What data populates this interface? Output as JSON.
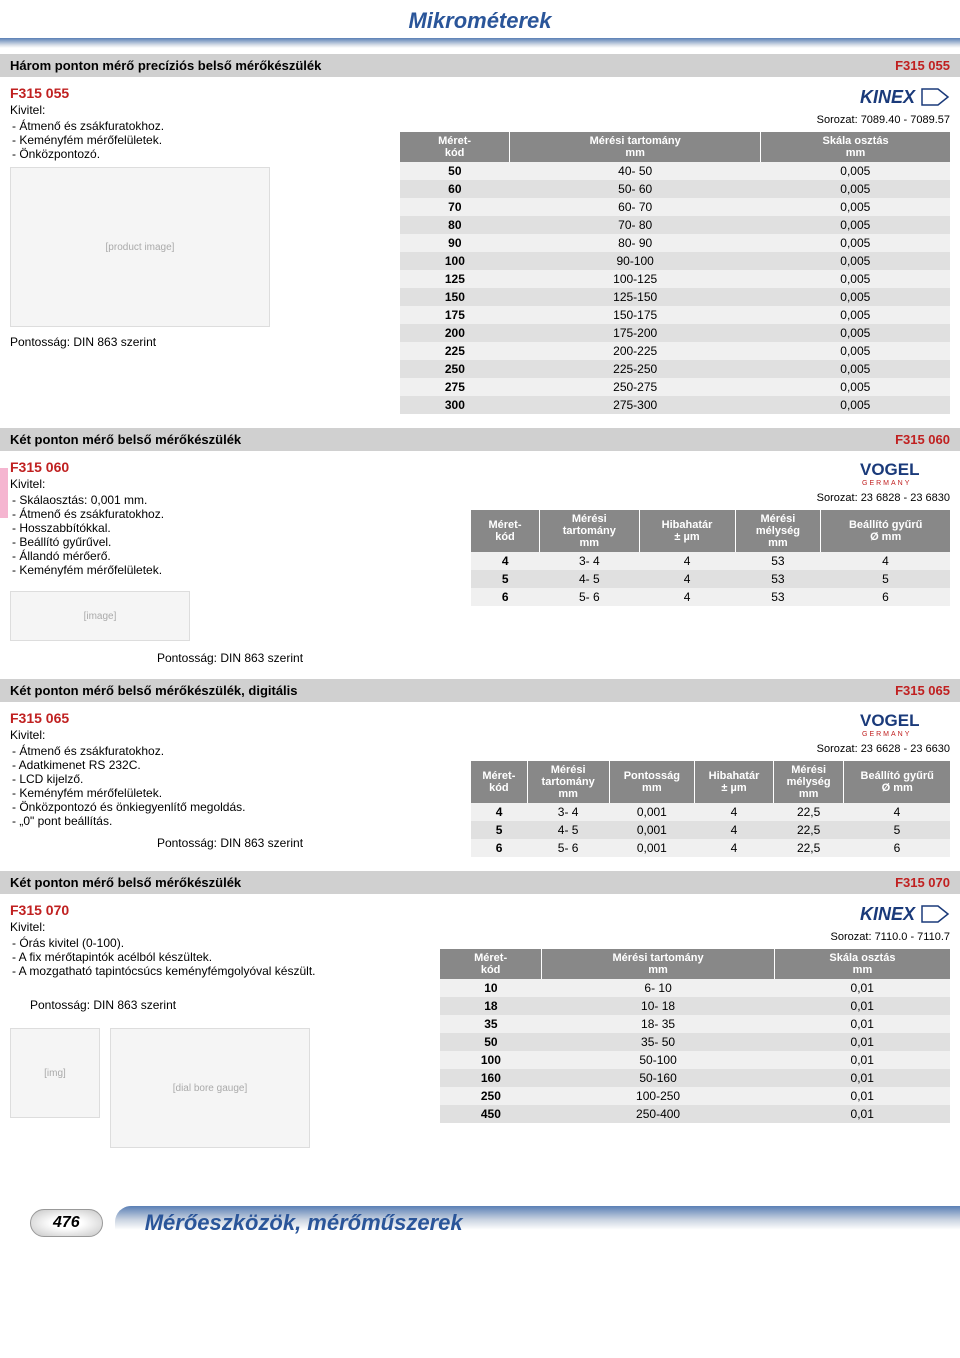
{
  "page_title": "Mikrométerek",
  "footer_page": "476",
  "footer_text": "Mérőeszközök, mérőműszerek",
  "brands": {
    "kinex": "KINEX",
    "vogel": "VOGEL",
    "vogel_sub": "GERMANY"
  },
  "sections": [
    {
      "bar_title": "Három ponton mérő precíziós belső mérőkészülék",
      "bar_code": "F315 055",
      "prod_code": "F315 055",
      "kivitel": "Kivitel:",
      "bullets": [
        "- Átmenő és zsákfuratokhoz.",
        "- Keményfém mérőfelületek.",
        "- Önközpontozó."
      ],
      "pontossag": "Pontosság: DIN 863 szerint",
      "brand": "kinex",
      "sorozat": "Sorozat: 7089.40 - 7089.57",
      "headers": [
        "Méret-\nkód",
        "Mérési tartomány\nmm",
        "Skála osztás\nmm"
      ],
      "rows": [
        [
          "50",
          "40- 50",
          "0,005"
        ],
        [
          "60",
          "50- 60",
          "0,005"
        ],
        [
          "70",
          "60- 70",
          "0,005"
        ],
        [
          "80",
          "70- 80",
          "0,005"
        ],
        [
          "90",
          "80- 90",
          "0,005"
        ],
        [
          "100",
          "90-100",
          "0,005"
        ],
        [
          "125",
          "100-125",
          "0,005"
        ],
        [
          "150",
          "125-150",
          "0,005"
        ],
        [
          "175",
          "150-175",
          "0,005"
        ],
        [
          "200",
          "175-200",
          "0,005"
        ],
        [
          "225",
          "200-225",
          "0,005"
        ],
        [
          "250",
          "225-250",
          "0,005"
        ],
        [
          "275",
          "250-275",
          "0,005"
        ],
        [
          "300",
          "275-300",
          "0,005"
        ]
      ]
    },
    {
      "bar_title": "Két ponton mérő belső mérőkészülék",
      "bar_code": "F315 060",
      "prod_code": "F315 060",
      "kivitel": "Kivitel:",
      "bullets": [
        "- Skálaosztás: 0,001 mm.",
        "- Átmenő és zsákfuratokhoz.",
        "- Hosszabbítókkal.",
        "- Beállító gyűrűvel.",
        "- Állandó mérőerő.",
        "- Keményfém mérőfelületek."
      ],
      "pontossag": "Pontosság: DIN 863 szerint",
      "brand": "vogel",
      "sorozat": "Sorozat: 23 6828 - 23 6830",
      "headers": [
        "Méret-\nkód",
        "Mérési\ntartomány\nmm",
        "Hibahatár\n± µm",
        "Mérési\nmélység\nmm",
        "Beállító gyűrű\nØ mm"
      ],
      "rows": [
        [
          "4",
          "3-  4",
          "4",
          "53",
          "4"
        ],
        [
          "5",
          "4-  5",
          "4",
          "53",
          "5"
        ],
        [
          "6",
          "5-  6",
          "4",
          "53",
          "6"
        ]
      ],
      "pink_tab": true
    },
    {
      "bar_title": "Két ponton mérő belső mérőkészülék, digitális",
      "bar_code": "F315 065",
      "prod_code": "F315 065",
      "kivitel": "Kivitel:",
      "bullets": [
        "- Átmenő és zsákfuratokhoz.",
        "- Adatkimenet RS 232C.",
        "- LCD kijelző.",
        "- Keményfém mérőfelületek.",
        "- Önközpontozó és önkiegyenlítő megoldás.",
        "- „0\"  pont beállítás."
      ],
      "pontossag": "Pontosság: DIN 863 szerint",
      "brand": "vogel",
      "sorozat": "Sorozat: 23 6628 - 23 6630",
      "headers": [
        "Méret-\nkód",
        "Mérési\ntartomány\nmm",
        "Pontosság\nmm",
        "Hibahatár\n± µm",
        "Mérési\nmélység\nmm",
        "Beállító gyűrű\nØ mm"
      ],
      "rows": [
        [
          "4",
          "3-  4",
          "0,001",
          "4",
          "22,5",
          "4"
        ],
        [
          "5",
          "4-  5",
          "0,001",
          "4",
          "22,5",
          "5"
        ],
        [
          "6",
          "5-  6",
          "0,001",
          "4",
          "22,5",
          "6"
        ]
      ]
    },
    {
      "bar_title": "Két ponton mérő belső mérőkészülék",
      "bar_code": "F315 070",
      "prod_code": "F315 070",
      "kivitel": "Kivitel:",
      "bullets": [
        "- Órás kivitel (0-100).",
        "- A fix mérőtapintók acélból készültek.",
        "- A mozgatható tapintócsúcs keményfémgolyóval készült."
      ],
      "pontossag": "Pontosság: DIN 863 szerint",
      "brand": "kinex",
      "sorozat": "Sorozat: 7110.0 - 7110.7",
      "headers": [
        "Méret-\nkód",
        "Mérési tartomány\nmm",
        "Skála osztás\nmm"
      ],
      "rows": [
        [
          "10",
          "6- 10",
          "0,01"
        ],
        [
          "18",
          "10- 18",
          "0,01"
        ],
        [
          "35",
          "18- 35",
          "0,01"
        ],
        [
          "50",
          "35- 50",
          "0,01"
        ],
        [
          "100",
          "50-100",
          "0,01"
        ],
        [
          "160",
          "50-160",
          "0,01"
        ],
        [
          "250",
          "100-250",
          "0,01"
        ],
        [
          "450",
          "250-400",
          "0,01"
        ]
      ]
    }
  ]
}
